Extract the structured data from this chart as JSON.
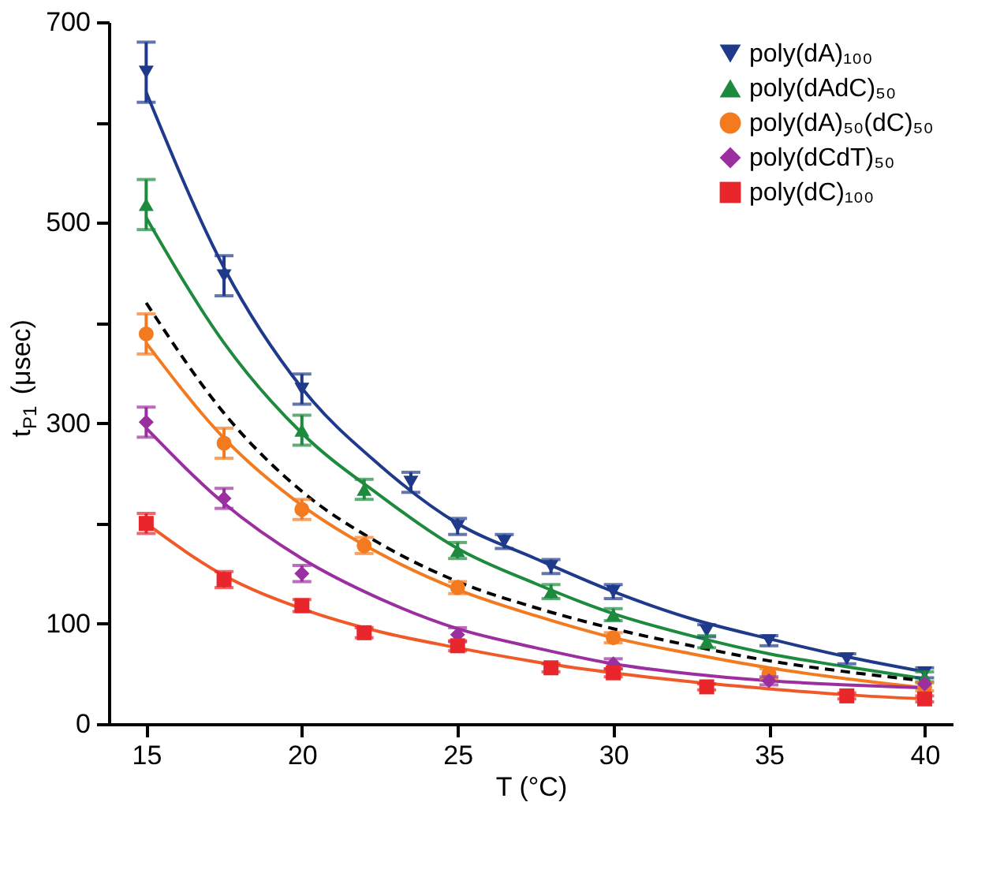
{
  "chart_data": {
    "type": "scatter",
    "xlabel": "T (°C)",
    "ylabel": "t$_{P1}$ (μsec)",
    "xlim": [
      13.8,
      40.9
    ],
    "xticks": [
      15,
      20,
      25,
      30,
      35,
      40
    ],
    "ylim": [
      0,
      700
    ],
    "yticks": [
      0,
      100,
      {
        "value": 200,
        "label": null
      },
      300,
      {
        "value": 400,
        "label": null
      },
      500,
      {
        "value": 600,
        "label": null
      },
      700
    ],
    "grid": false,
    "legend": "top right",
    "series": [
      {
        "name": "poly(dA)₁₀₀",
        "color": "#1f3a8a",
        "marker": "triangle-down",
        "x": [
          15,
          17.5,
          20,
          23.5,
          25,
          26.5,
          28,
          30,
          33,
          35,
          37.5,
          40
        ],
        "values": [
          650,
          447,
          334,
          241,
          197,
          182,
          157,
          132,
          93,
          83,
          65,
          51
        ],
        "errors": [
          30,
          20,
          15,
          10,
          8,
          7,
          7,
          7,
          6,
          5,
          5,
          5
        ]
      },
      {
        "name": "poly(dAdC)₅₀",
        "color": "#1e8a3e",
        "marker": "triangle",
        "x": [
          15,
          20,
          22,
          25,
          28,
          30,
          33,
          40
        ],
        "values": [
          518,
          293,
          234,
          173,
          132,
          109,
          82,
          47
        ],
        "errors": [
          25,
          15,
          10,
          8,
          7,
          6,
          6,
          5
        ]
      },
      {
        "name": "poly(dA)₅₀(dC)₅₀",
        "color": "#f47a20",
        "marker": "circle",
        "x": [
          15,
          17.5,
          20,
          22,
          25,
          30,
          35,
          40
        ],
        "values": [
          389,
          280,
          214,
          178,
          136,
          86,
          50,
          37
        ],
        "errors": [
          20,
          15,
          10,
          8,
          6,
          5,
          5,
          4
        ]
      },
      {
        "name": "poly(dCdT)₅₀",
        "color": "#9b2fa0",
        "marker": "diamond",
        "x": [
          15,
          17.5,
          20,
          25,
          30,
          35,
          40
        ],
        "values": [
          301,
          225,
          150,
          89,
          60,
          43,
          40
        ],
        "errors": [
          15,
          10,
          8,
          7,
          5,
          4,
          null
        ]
      },
      {
        "name": "poly(dC)₁₀₀",
        "color": "#e8262b",
        "marker": "square",
        "x": [
          15,
          17.5,
          20,
          22,
          25,
          28,
          30,
          33,
          37.5,
          40
        ],
        "values": [
          200,
          144,
          118,
          91,
          78,
          56,
          51,
          37,
          28,
          25
        ],
        "errors": [
          10,
          8,
          6,
          5,
          5,
          4,
          4,
          3,
          3,
          3
        ]
      },
      {
        "type": "line",
        "color": "#1f3a8a",
        "line_style": "solid",
        "x": [
          15,
          17.5,
          20,
          22.5,
          25,
          27.5,
          30,
          32.5,
          35,
          37.5,
          40
        ],
        "values": [
          630,
          455,
          335,
          258,
          200,
          165,
          132,
          105,
          85,
          67,
          52
        ]
      },
      {
        "type": "line",
        "color": "#1e8a3e",
        "line_style": "solid",
        "x": [
          15,
          17.5,
          20,
          22.5,
          25,
          27.5,
          30,
          32.5,
          35,
          37.5,
          40
        ],
        "values": [
          505,
          380,
          290,
          228,
          175,
          140,
          110,
          88,
          70,
          57,
          45
        ]
      },
      {
        "type": "line",
        "color": "#f47a20",
        "line_style": "solid",
        "x": [
          15,
          17.5,
          20,
          22.5,
          25,
          27.5,
          30,
          32.5,
          35,
          37.5,
          40
        ],
        "values": [
          380,
          285,
          218,
          170,
          134,
          108,
          86,
          70,
          56,
          45,
          36
        ]
      },
      {
        "type": "line",
        "color": "#9b2fa0",
        "line_style": "solid",
        "x": [
          15,
          17.5,
          20,
          22.5,
          25,
          27.5,
          30,
          32.5,
          35,
          37.5,
          40
        ],
        "values": [
          295,
          220,
          165,
          125,
          95,
          76,
          60,
          50,
          43,
          39,
          36
        ]
      },
      {
        "type": "line",
        "color": "#f05a28",
        "line_style": "solid",
        "x": [
          15,
          17.5,
          20,
          22.5,
          25,
          27.5,
          30,
          32.5,
          35,
          37.5,
          40
        ],
        "values": [
          200,
          148,
          115,
          92,
          76,
          62,
          51,
          42,
          35,
          29,
          25
        ]
      },
      {
        "type": "line",
        "color": "#000000",
        "line_style": "dashed",
        "x": [
          15,
          17.5,
          20,
          22.5,
          25,
          27.5,
          30,
          32.5,
          35,
          37.5,
          40
        ],
        "values": [
          420,
          310,
          232,
          180,
          142,
          116,
          95,
          78,
          63,
          52,
          43
        ]
      }
    ]
  }
}
